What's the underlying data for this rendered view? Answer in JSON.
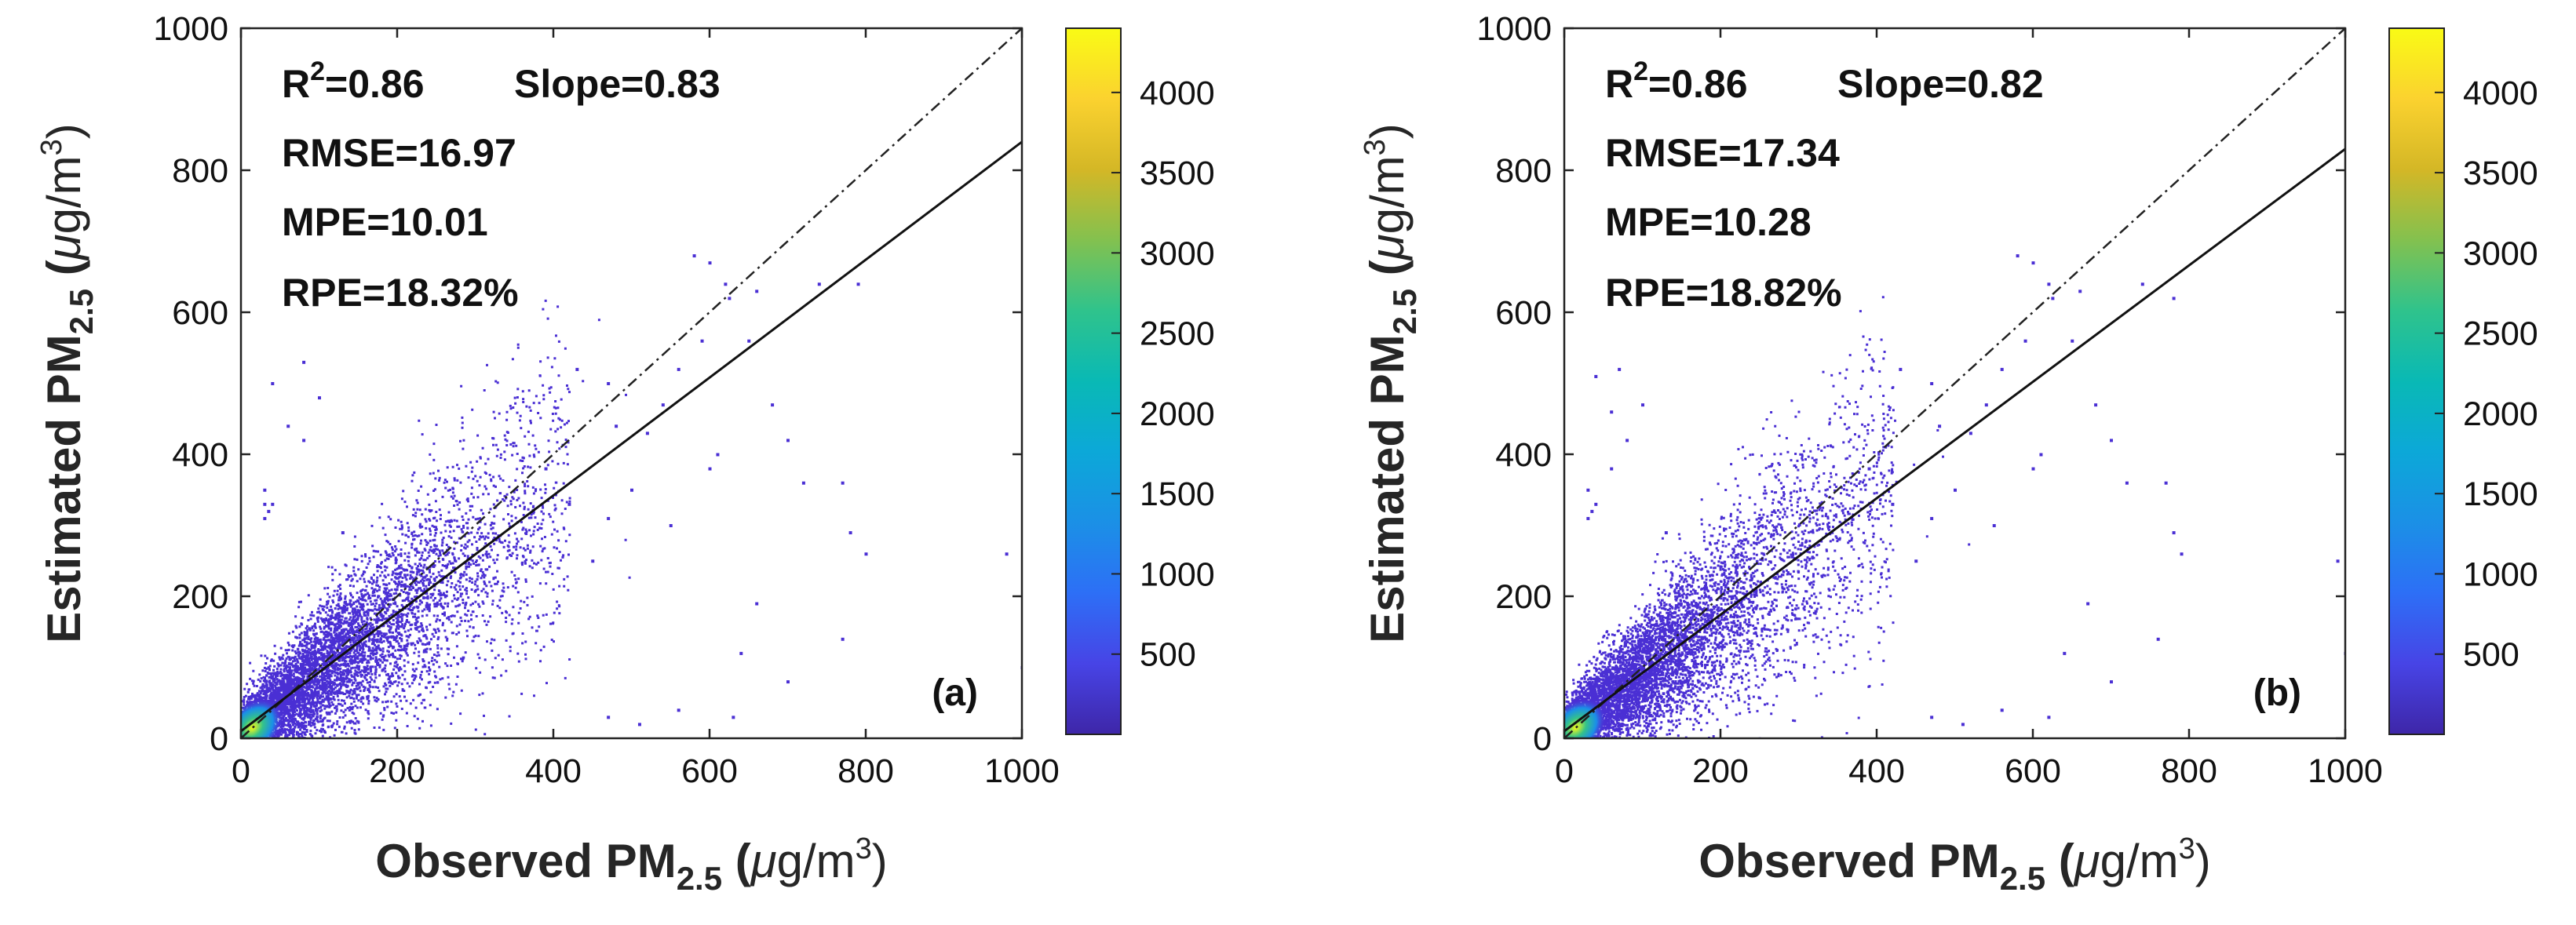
{
  "chart_data": [
    {
      "type": "scatter",
      "panel_label": "(a)",
      "xlabel": {
        "main": "Observed PM",
        "sub": "2.5",
        "unit_open": " (",
        "mu": "μ",
        "unit_mid": "g/m",
        "sup": "3",
        "unit_close": ")"
      },
      "ylabel": {
        "main": "Estimated PM",
        "sub": "2.5",
        "unit_open": " (",
        "mu": "μ",
        "unit_mid": "g/m",
        "sup": "3",
        "unit_close": ")"
      },
      "xlim": [
        0,
        1000
      ],
      "ylim": [
        0,
        1000
      ],
      "xticks": [
        0,
        200,
        400,
        600,
        800,
        1000
      ],
      "yticks": [
        0,
        200,
        400,
        600,
        800,
        1000
      ],
      "stats": {
        "r2_label": "R",
        "r2_sup": "2",
        "r2_value": "=0.86",
        "slope": "Slope=0.83",
        "rmse": "RMSE=16.97",
        "mpe": "MPE=10.01",
        "rpe": "RPE=18.32%"
      },
      "fit_line": {
        "slope": 0.83,
        "intercept": 10,
        "x_range": [
          0,
          1000
        ]
      },
      "reference_line": {
        "slope": 1,
        "intercept": 0,
        "style": "dash-dot"
      },
      "colorbar": {
        "min": 0,
        "max": 4400,
        "ticks": [
          500,
          1000,
          1500,
          2000,
          2500,
          3000,
          3500,
          4000
        ],
        "colormap": "parula"
      },
      "outliers": [
        [
          40,
          500
        ],
        [
          60,
          440
        ],
        [
          80,
          420
        ],
        [
          80,
          530
        ],
        [
          100,
          480
        ],
        [
          130,
          290
        ],
        [
          35,
          320
        ],
        [
          40,
          330
        ],
        [
          30,
          310
        ],
        [
          30,
          350
        ],
        [
          30,
          330
        ],
        [
          620,
          640
        ],
        [
          625,
          620
        ],
        [
          660,
          630
        ],
        [
          650,
          560
        ],
        [
          680,
          470
        ],
        [
          660,
          190
        ],
        [
          640,
          120
        ],
        [
          700,
          80
        ],
        [
          770,
          140
        ],
        [
          770,
          360
        ],
        [
          780,
          290
        ],
        [
          800,
          260
        ],
        [
          740,
          640
        ],
        [
          790,
          640
        ],
        [
          600,
          670
        ],
        [
          580,
          680
        ],
        [
          560,
          40
        ],
        [
          470,
          30
        ],
        [
          510,
          20
        ],
        [
          630,
          30
        ],
        [
          980,
          260
        ],
        [
          1000,
          100
        ],
        [
          720,
          360
        ],
        [
          700,
          420
        ],
        [
          520,
          430
        ],
        [
          540,
          470
        ],
        [
          600,
          380
        ],
        [
          610,
          400
        ],
        [
          450,
          250
        ],
        [
          470,
          310
        ],
        [
          500,
          350
        ],
        [
          480,
          440
        ],
        [
          560,
          520
        ],
        [
          590,
          560
        ],
        [
          550,
          300
        ],
        [
          470,
          500
        ],
        [
          430,
          520
        ],
        [
          390,
          380
        ],
        [
          420,
          330
        ]
      ]
    },
    {
      "type": "scatter",
      "panel_label": "(b)",
      "xlabel": {
        "main": "Observed PM",
        "sub": "2.5",
        "unit_open": " (",
        "mu": "μ",
        "unit_mid": "g/m",
        "sup": "3",
        "unit_close": ")"
      },
      "ylabel": {
        "main": "Estimated PM",
        "sub": "2.5",
        "unit_open": " (",
        "mu": "μ",
        "unit_mid": "g/m",
        "sup": "3",
        "unit_close": ")"
      },
      "xlim": [
        0,
        1000
      ],
      "ylim": [
        0,
        1000
      ],
      "xticks": [
        0,
        200,
        400,
        600,
        800,
        1000
      ],
      "yticks": [
        0,
        200,
        400,
        600,
        800,
        1000
      ],
      "stats": {
        "r2_label": "R",
        "r2_sup": "2",
        "r2_value": "=0.86",
        "slope": "Slope=0.82",
        "rmse": "RMSE=17.34",
        "mpe": "MPE=10.28",
        "rpe": "RPE=18.82%"
      },
      "fit_line": {
        "slope": 0.82,
        "intercept": 10,
        "x_range": [
          0,
          1000
        ]
      },
      "reference_line": {
        "slope": 1,
        "intercept": 0,
        "style": "dash-dot"
      },
      "colorbar": {
        "min": 0,
        "max": 4400,
        "ticks": [
          500,
          1000,
          1500,
          2000,
          2500,
          3000,
          3500,
          4000
        ],
        "colormap": "parula"
      },
      "outliers": [
        [
          40,
          510
        ],
        [
          60,
          460
        ],
        [
          80,
          420
        ],
        [
          70,
          520
        ],
        [
          100,
          470
        ],
        [
          130,
          290
        ],
        [
          35,
          320
        ],
        [
          40,
          330
        ],
        [
          30,
          310
        ],
        [
          30,
          350
        ],
        [
          60,
          380
        ],
        [
          620,
          640
        ],
        [
          625,
          620
        ],
        [
          660,
          630
        ],
        [
          650,
          560
        ],
        [
          680,
          470
        ],
        [
          670,
          190
        ],
        [
          640,
          120
        ],
        [
          700,
          80
        ],
        [
          760,
          140
        ],
        [
          770,
          360
        ],
        [
          780,
          290
        ],
        [
          790,
          260
        ],
        [
          740,
          640
        ],
        [
          780,
          620
        ],
        [
          600,
          670
        ],
        [
          580,
          680
        ],
        [
          560,
          40
        ],
        [
          470,
          30
        ],
        [
          510,
          20
        ],
        [
          620,
          30
        ],
        [
          990,
          250
        ],
        [
          1000,
          120
        ],
        [
          720,
          360
        ],
        [
          700,
          420
        ],
        [
          520,
          430
        ],
        [
          540,
          470
        ],
        [
          600,
          380
        ],
        [
          610,
          400
        ],
        [
          450,
          250
        ],
        [
          470,
          310
        ],
        [
          500,
          350
        ],
        [
          480,
          440
        ],
        [
          560,
          520
        ],
        [
          590,
          560
        ],
        [
          550,
          300
        ],
        [
          470,
          500
        ],
        [
          430,
          520
        ],
        [
          390,
          380
        ],
        [
          420,
          330
        ]
      ]
    }
  ]
}
